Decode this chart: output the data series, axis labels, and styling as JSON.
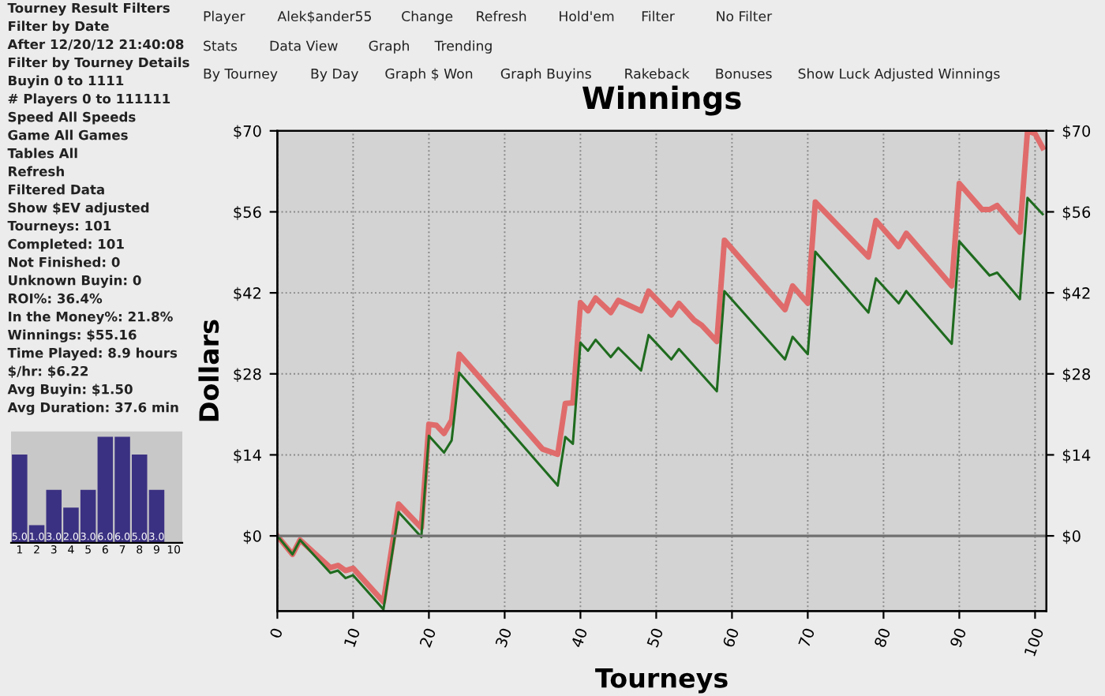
{
  "chart_data": [
    {
      "type": "other",
      "annotations": [
        "Tourney Result Filters",
        "Filter by Date",
        "After 12/20/12 21:40:08",
        "Filter by Tourney Details",
        "Buyin 0 to 1111",
        "# Players 0 to 111111",
        "Speed All Speeds",
        "Game All Games",
        "Tables All",
        "Refresh",
        "Filtered Data",
        "Show $EV adjusted",
        "Tourneys: 101",
        "Completed: 101",
        "Not Finished: 0",
        "Unknown Buyin: 0",
        "ROI%: 36.4%",
        "In the Money%: 21.8%",
        "Winnings: $55.16",
        "Time Played: 8.9 hours",
        "$/hr: $6.22",
        "Avg Buyin: $1.50",
        "Avg Duration: 37.6 min"
      ]
    },
    {
      "type": "bar",
      "categories": [
        "1",
        "2",
        "3",
        "4",
        "5",
        "6",
        "7",
        "8",
        "9",
        "10"
      ],
      "values": [
        5,
        1,
        3,
        2,
        3,
        6,
        6,
        5,
        3,
        0
      ],
      "value_labels": [
        "5.0",
        "1.0",
        "3.0",
        "2.0",
        "3.0",
        "6.0",
        "6.0",
        "5.0",
        "3.0",
        null
      ],
      "color": "#3b3182"
    },
    {
      "type": "other",
      "annotations": [
        "Player",
        "Alek$ander55",
        "Change",
        "Refresh",
        "Hold'em",
        "Filter",
        "No Filter"
      ]
    },
    {
      "type": "other",
      "annotations": [
        "Stats",
        "Data View",
        "Graph",
        "Trending"
      ]
    },
    {
      "type": "other",
      "annotations": [
        "By Tourney",
        "By Day",
        "Graph $ Won",
        "Graph Buyins",
        "Rakeback",
        "Bonuses",
        "Show Luck Adjusted Winnings"
      ]
    },
    {
      "type": "line",
      "title": "Winnings",
      "xlabel": "Tourneys",
      "ylabel": "Dollars",
      "grid": true,
      "xlim": [
        0,
        101.5
      ],
      "xticks": [
        0,
        10,
        20,
        30,
        40,
        50,
        60,
        70,
        80,
        90,
        100
      ],
      "ylim": [
        -13,
        70
      ],
      "yticks": [
        {
          "value": 0,
          "label": "$0"
        },
        {
          "value": 14,
          "label": "$14"
        },
        {
          "value": 28,
          "label": "$28"
        },
        {
          "value": 42,
          "label": "$42"
        },
        {
          "value": 56,
          "label": "$56"
        },
        {
          "value": 70,
          "label": "$70"
        }
      ],
      "y2lim": [
        -13,
        70
      ],
      "y2ticks": [
        {
          "value": 0,
          "label": "$0"
        },
        {
          "value": 14,
          "label": "$14"
        },
        {
          "value": 28,
          "label": "$28"
        },
        {
          "value": 42,
          "label": "$42"
        },
        {
          "value": 56,
          "label": "$56"
        },
        {
          "value": 70,
          "label": "$70"
        }
      ],
      "ref_lines": [
        {
          "axis": "y",
          "value": 0,
          "color": "#707070"
        }
      ],
      "series": [
        {
          "color": "#e06b6b",
          "x": [
            0,
            2,
            3,
            7,
            8,
            9,
            10,
            14,
            16,
            19,
            20,
            21,
            22,
            23,
            24,
            35,
            37,
            38,
            39,
            40,
            41,
            42,
            44,
            45,
            48,
            49,
            52,
            53,
            55,
            56,
            58,
            59,
            67,
            68,
            70,
            71,
            78,
            79,
            82,
            83,
            89,
            90,
            93,
            94,
            95,
            98,
            99,
            100,
            101
          ],
          "values": [
            0,
            -3.2,
            -0.7,
            -5.5,
            -5.1,
            -6,
            -5.6,
            -11.4,
            5.5,
            1.4,
            19.3,
            19.1,
            17.7,
            20,
            31.4,
            15,
            14.1,
            22.9,
            23,
            40.3,
            38.9,
            41.1,
            38.6,
            40.7,
            38.9,
            42.3,
            38.2,
            40.2,
            37.3,
            36.4,
            33.6,
            51.1,
            39.1,
            43.2,
            40.2,
            57.7,
            48.2,
            54.5,
            50,
            52.3,
            43.2,
            60.9,
            56.4,
            56.4,
            57.1,
            52.5,
            70,
            69.5,
            67.1
          ]
        },
        {
          "color": "#1f6b1f",
          "x": [
            0,
            2,
            3,
            7,
            8,
            9,
            10,
            14,
            16,
            19,
            20,
            22,
            23,
            24,
            37,
            38,
            39,
            40,
            41,
            42,
            44,
            45,
            48,
            49,
            52,
            53,
            58,
            59,
            67,
            68,
            70,
            71,
            78,
            79,
            82,
            83,
            89,
            90,
            94,
            95,
            98,
            99,
            101
          ],
          "values": [
            0,
            -3.2,
            -0.7,
            -6.4,
            -6,
            -7.3,
            -6.8,
            -12.7,
            4.1,
            -0.2,
            17.3,
            14.4,
            16.5,
            28.2,
            8.7,
            17.1,
            15.9,
            33.4,
            32,
            33.9,
            30.9,
            32.5,
            28.6,
            34.7,
            30.5,
            32.3,
            25,
            42.3,
            30.5,
            34.4,
            31.4,
            49.1,
            38.6,
            44.5,
            40.2,
            42.3,
            33.2,
            50.9,
            45,
            45.5,
            40.9,
            58.4,
            55.6
          ]
        }
      ]
    }
  ]
}
